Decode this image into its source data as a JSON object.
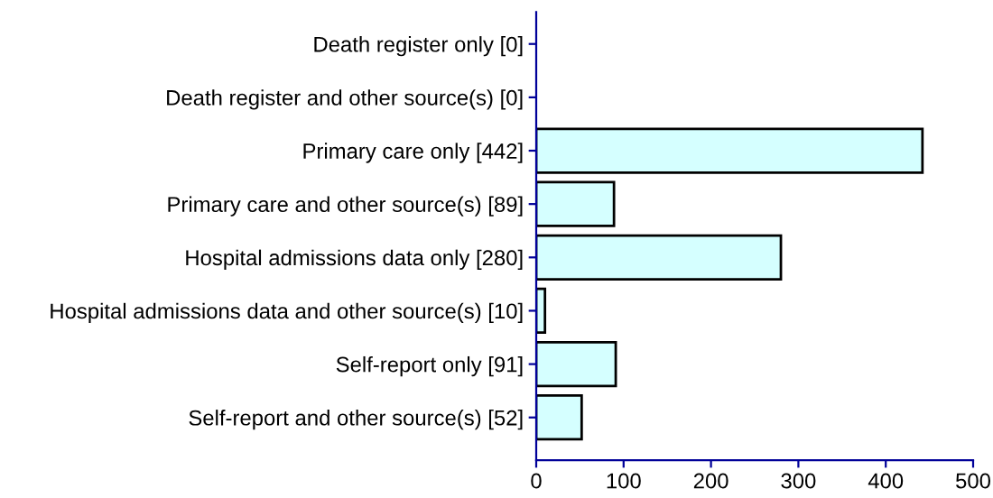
{
  "chart_data": {
    "type": "bar",
    "orientation": "horizontal",
    "categories": [
      "Death register only [0]",
      "Death register and other source(s) [0]",
      "Primary care only [442]",
      "Primary care and other source(s) [89]",
      "Hospital admissions data only [280]",
      "Hospital admissions data and other source(s) [10]",
      "Self-report only [91]",
      "Self-report and other source(s) [52]"
    ],
    "values": [
      0,
      0,
      442,
      89,
      280,
      10,
      91,
      52
    ],
    "color": "#d5ffff",
    "xlim": [
      0,
      500
    ],
    "xticks": [
      0,
      100,
      200,
      300,
      400,
      500
    ],
    "grid": false,
    "legend": false
  }
}
